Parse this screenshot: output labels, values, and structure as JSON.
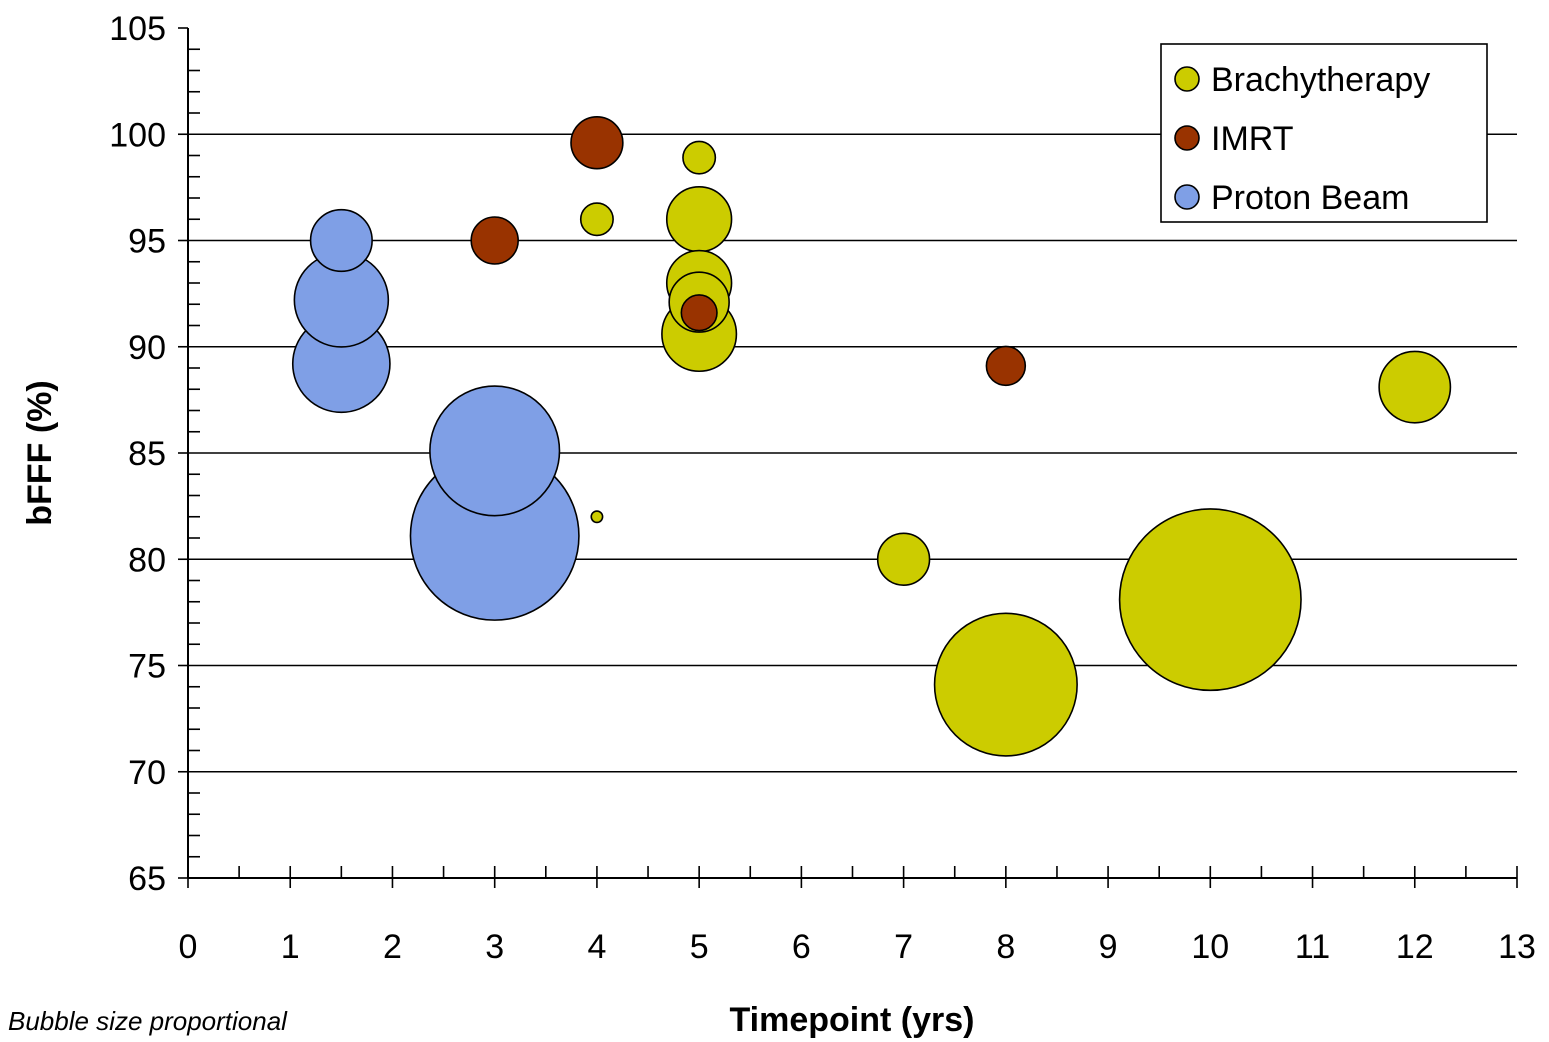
{
  "chart_data": {
    "type": "bubble",
    "xlabel": "Timepoint (yrs)",
    "ylabel": "bFFF (%)",
    "xlim": [
      0,
      13
    ],
    "ylim": [
      65,
      105
    ],
    "x_ticks": [
      0,
      1,
      2,
      3,
      4,
      5,
      6,
      7,
      8,
      9,
      10,
      11,
      12,
      13
    ],
    "y_ticks": [
      65,
      70,
      75,
      80,
      85,
      90,
      95,
      100,
      105
    ],
    "grid": "horizontal major gridlines",
    "legend_position": "top-right",
    "note": "Bubble size proportional",
    "series": [
      {
        "name": "Brachytherapy",
        "color": "#cccc00",
        "points": [
          {
            "x": 4,
            "y": 96,
            "size": 1.0
          },
          {
            "x": 4,
            "y": 82,
            "size": 0.35
          },
          {
            "x": 5,
            "y": 98.9,
            "size": 1.0
          },
          {
            "x": 5,
            "y": 96,
            "size": 2.0
          },
          {
            "x": 5,
            "y": 93,
            "size": 2.0
          },
          {
            "x": 5,
            "y": 92.1,
            "size": 1.85
          },
          {
            "x": 5,
            "y": 90.6,
            "size": 2.3
          },
          {
            "x": 7,
            "y": 80,
            "size": 1.6
          },
          {
            "x": 8,
            "y": 74.1,
            "size": 4.4
          },
          {
            "x": 10,
            "y": 78.1,
            "size": 5.6
          },
          {
            "x": 12,
            "y": 88.1,
            "size": 2.2
          }
        ]
      },
      {
        "name": "IMRT",
        "color": "#993300",
        "points": [
          {
            "x": 3,
            "y": 95,
            "size": 1.45
          },
          {
            "x": 4,
            "y": 99.6,
            "size": 1.6
          },
          {
            "x": 5,
            "y": 91.6,
            "size": 1.1
          },
          {
            "x": 8,
            "y": 89.1,
            "size": 1.2
          }
        ]
      },
      {
        "name": "Proton Beam",
        "color": "#7f9fe6",
        "points": [
          {
            "x": 1.5,
            "y": 95,
            "size": 1.9
          },
          {
            "x": 1.5,
            "y": 92.2,
            "size": 2.9
          },
          {
            "x": 1.5,
            "y": 89.2,
            "size": 3.0
          },
          {
            "x": 3,
            "y": 81.1,
            "size": 5.2
          },
          {
            "x": 3,
            "y": 85.1,
            "size": 4.0
          }
        ]
      }
    ]
  }
}
